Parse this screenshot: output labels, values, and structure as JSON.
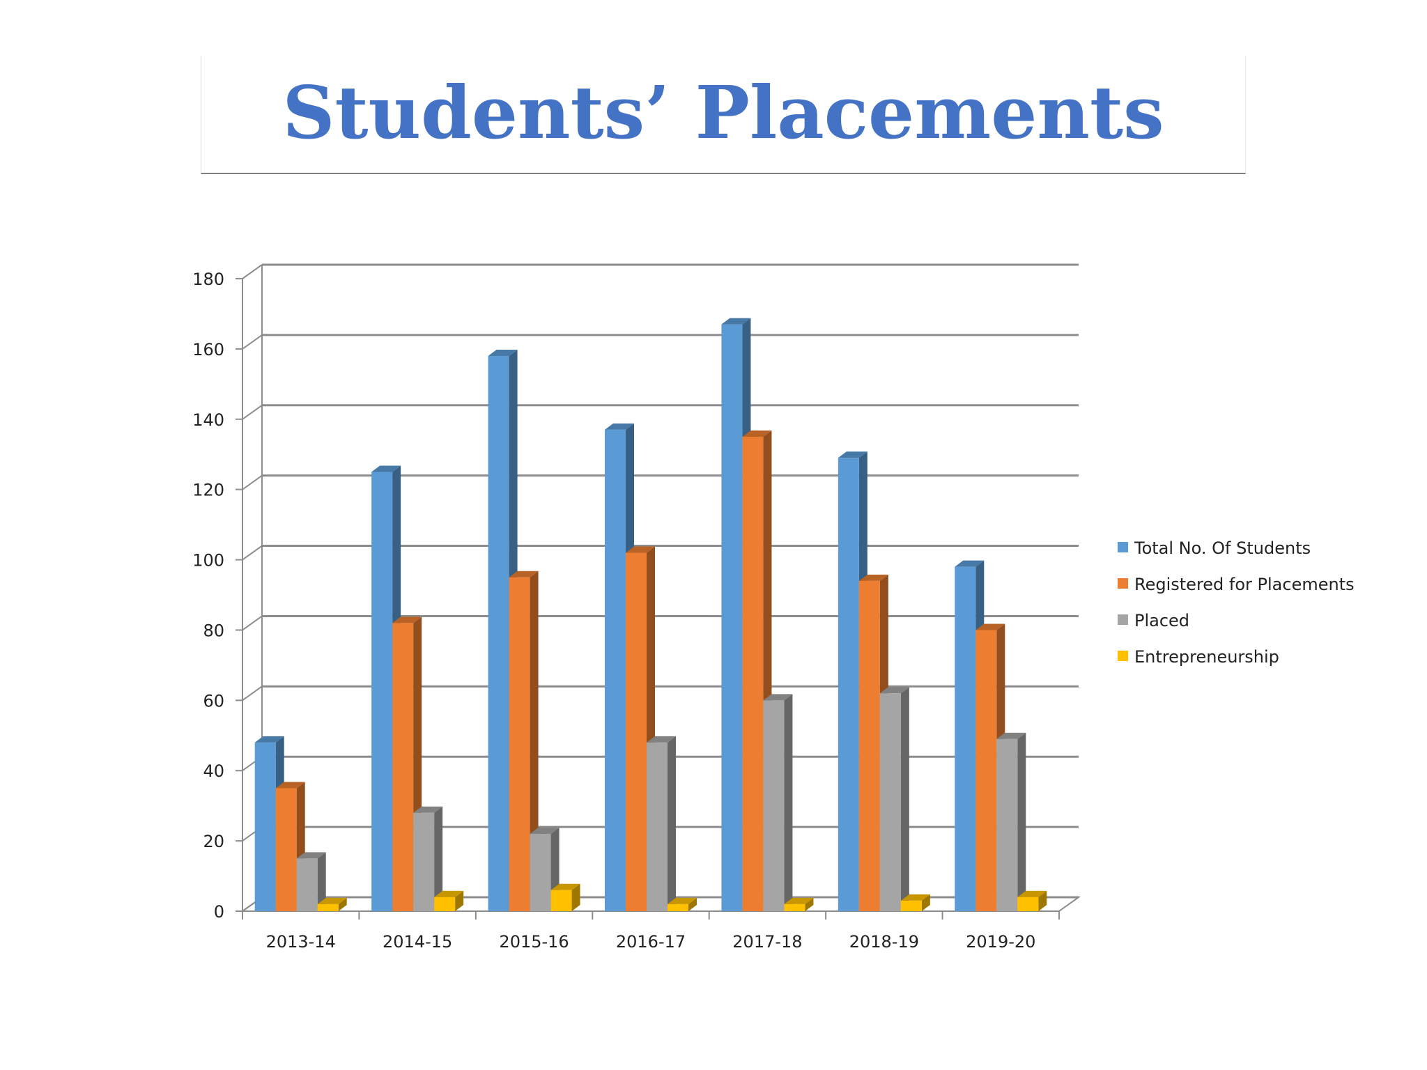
{
  "slide_title": "Students’ Placements",
  "chart_data": {
    "type": "bar",
    "title": "",
    "xlabel": "",
    "ylabel": "",
    "ylim": [
      0,
      180
    ],
    "yticks": [
      0,
      20,
      40,
      60,
      80,
      100,
      120,
      140,
      160,
      180
    ],
    "grid": true,
    "legend_position": "right",
    "style": "3d-clustered-column",
    "categories": [
      "2013-14",
      "2014-15",
      "2015-16",
      "2016-17",
      "2017-18",
      "2018-19",
      "2019-20"
    ],
    "series": [
      {
        "name": "Total No. Of Students",
        "color": "#5b9bd5",
        "values": [
          48,
          125,
          158,
          137,
          167,
          129,
          98
        ]
      },
      {
        "name": "Registered for Placements",
        "color": "#ed7d31",
        "values": [
          35,
          82,
          95,
          102,
          135,
          94,
          80
        ]
      },
      {
        "name": "Placed",
        "color": "#a5a5a5",
        "values": [
          15,
          28,
          22,
          48,
          60,
          62,
          49
        ]
      },
      {
        "name": "Entrepreneurship",
        "color": "#ffc000",
        "values": [
          2,
          4,
          6,
          2,
          2,
          3,
          4
        ]
      }
    ]
  }
}
